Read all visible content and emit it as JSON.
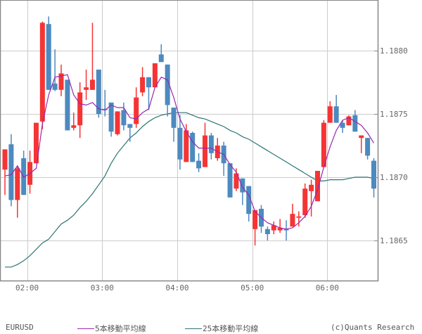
{
  "chart_data": {
    "type": "candlestick",
    "symbol": "EURUSD",
    "title": "",
    "xlabel": "",
    "ylabel": "",
    "interval_minutes": 5,
    "ylim": [
      1.18626,
      1.1884
    ],
    "yticks": [
      1.1865,
      1.187,
      1.1875,
      1.188
    ],
    "ytick_labels": [
      "1.1865",
      "1.1870",
      "1.1875",
      "1.1880"
    ],
    "xtick_labels": [
      "02:00",
      "03:00",
      "04:00",
      "05:00",
      "06:00"
    ],
    "xtick_index": [
      4,
      16,
      28,
      40,
      52
    ],
    "grid": true,
    "legend_position": "bottom",
    "colors": {
      "up": "#f53434",
      "down": "#4c8abf",
      "ma5": "#9b27b0",
      "ma25": "#2e7474",
      "grid": "#cccccc",
      "frame": "#888888"
    },
    "candles": [
      {
        "o": 1.18706,
        "h": 1.18722,
        "l": 1.18686,
        "c": 1.18722
      },
      {
        "o": 1.18726,
        "h": 1.18734,
        "l": 1.18677,
        "c": 1.18682
      },
      {
        "o": 1.18682,
        "h": 1.18709,
        "l": 1.18668,
        "c": 1.18707
      },
      {
        "o": 1.18715,
        "h": 1.18721,
        "l": 1.18686,
        "c": 1.18686
      },
      {
        "o": 1.18694,
        "h": 1.18721,
        "l": 1.18687,
        "c": 1.18712
      },
      {
        "o": 1.18711,
        "h": 1.18743,
        "l": 1.18711,
        "c": 1.18743
      },
      {
        "o": 1.18744,
        "h": 1.18823,
        "l": 1.18738,
        "c": 1.18822
      },
      {
        "o": 1.18821,
        "h": 1.18827,
        "l": 1.18769,
        "c": 1.18769
      },
      {
        "o": 1.18774,
        "h": 1.18801,
        "l": 1.18768,
        "c": 1.18769
      },
      {
        "o": 1.18769,
        "h": 1.18789,
        "l": 1.18764,
        "c": 1.18782
      },
      {
        "o": 1.18777,
        "h": 1.18777,
        "l": 1.18737,
        "c": 1.18737
      },
      {
        "o": 1.18739,
        "h": 1.18751,
        "l": 1.18737,
        "c": 1.18741
      },
      {
        "o": 1.18741,
        "h": 1.18775,
        "l": 1.18731,
        "c": 1.18767
      },
      {
        "o": 1.18769,
        "h": 1.18785,
        "l": 1.18761,
        "c": 1.18771
      },
      {
        "o": 1.18769,
        "h": 1.18822,
        "l": 1.18769,
        "c": 1.18777
      },
      {
        "o": 1.18785,
        "h": 1.18785,
        "l": 1.18747,
        "c": 1.1875
      },
      {
        "o": 1.18754,
        "h": 1.18769,
        "l": 1.18748,
        "c": 1.18753
      },
      {
        "o": 1.18759,
        "h": 1.18759,
        "l": 1.18732,
        "c": 1.18736
      },
      {
        "o": 1.18734,
        "h": 1.18752,
        "l": 1.18733,
        "c": 1.18752
      },
      {
        "o": 1.18753,
        "h": 1.18759,
        "l": 1.18737,
        "c": 1.18741
      },
      {
        "o": 1.18742,
        "h": 1.18742,
        "l": 1.18728,
        "c": 1.18739
      },
      {
        "o": 1.18742,
        "h": 1.18771,
        "l": 1.18739,
        "c": 1.18763
      },
      {
        "o": 1.18767,
        "h": 1.18787,
        "l": 1.18764,
        "c": 1.18779
      },
      {
        "o": 1.18779,
        "h": 1.18779,
        "l": 1.18753,
        "c": 1.18771
      },
      {
        "o": 1.18771,
        "h": 1.1879,
        "l": 1.18771,
        "c": 1.1879
      },
      {
        "o": 1.18797,
        "h": 1.18805,
        "l": 1.18791,
        "c": 1.18791
      },
      {
        "o": 1.18789,
        "h": 1.18789,
        "l": 1.18748,
        "c": 1.18757
      },
      {
        "o": 1.18755,
        "h": 1.18755,
        "l": 1.18728,
        "c": 1.18739
      },
      {
        "o": 1.18739,
        "h": 1.18749,
        "l": 1.18706,
        "c": 1.18714
      },
      {
        "o": 1.18712,
        "h": 1.18742,
        "l": 1.18712,
        "c": 1.18737
      },
      {
        "o": 1.18735,
        "h": 1.18736,
        "l": 1.18712,
        "c": 1.18712
      },
      {
        "o": 1.18713,
        "h": 1.18719,
        "l": 1.18704,
        "c": 1.18707
      },
      {
        "o": 1.18708,
        "h": 1.18743,
        "l": 1.18708,
        "c": 1.18733
      },
      {
        "o": 1.18733,
        "h": 1.18735,
        "l": 1.18714,
        "c": 1.18719
      },
      {
        "o": 1.18715,
        "h": 1.18731,
        "l": 1.18713,
        "c": 1.18725
      },
      {
        "o": 1.18725,
        "h": 1.18728,
        "l": 1.18701,
        "c": 1.18711
      },
      {
        "o": 1.18711,
        "h": 1.18711,
        "l": 1.18684,
        "c": 1.18684
      },
      {
        "o": 1.18691,
        "h": 1.18707,
        "l": 1.18689,
        "c": 1.18703
      },
      {
        "o": 1.18699,
        "h": 1.18699,
        "l": 1.18678,
        "c": 1.18688
      },
      {
        "o": 1.18693,
        "h": 1.18693,
        "l": 1.18665,
        "c": 1.18671
      },
      {
        "o": 1.18659,
        "h": 1.18674,
        "l": 1.18646,
        "c": 1.18674
      },
      {
        "o": 1.18675,
        "h": 1.18678,
        "l": 1.18656,
        "c": 1.18661
      },
      {
        "o": 1.18659,
        "h": 1.18661,
        "l": 1.1865,
        "c": 1.18655
      },
      {
        "o": 1.18658,
        "h": 1.18665,
        "l": 1.18655,
        "c": 1.18662
      },
      {
        "o": 1.18658,
        "h": 1.18667,
        "l": 1.18656,
        "c": 1.1866
      },
      {
        "o": 1.18659,
        "h": 1.18666,
        "l": 1.1865,
        "c": 1.18658
      },
      {
        "o": 1.18661,
        "h": 1.18679,
        "l": 1.18661,
        "c": 1.18671
      },
      {
        "o": 1.18668,
        "h": 1.18673,
        "l": 1.18661,
        "c": 1.18669
      },
      {
        "o": 1.1867,
        "h": 1.18695,
        "l": 1.18668,
        "c": 1.18691
      },
      {
        "o": 1.18689,
        "h": 1.18698,
        "l": 1.18669,
        "c": 1.18694
      },
      {
        "o": 1.18681,
        "h": 1.18705,
        "l": 1.18681,
        "c": 1.18705
      },
      {
        "o": 1.18708,
        "h": 1.18745,
        "l": 1.18708,
        "c": 1.18743
      },
      {
        "o": 1.18743,
        "h": 1.1876,
        "l": 1.18743,
        "c": 1.18756
      },
      {
        "o": 1.18756,
        "h": 1.18765,
        "l": 1.18743,
        "c": 1.18743
      },
      {
        "o": 1.18743,
        "h": 1.18745,
        "l": 1.18735,
        "c": 1.18739
      },
      {
        "o": 1.18741,
        "h": 1.18749,
        "l": 1.18741,
        "c": 1.18748
      },
      {
        "o": 1.18749,
        "h": 1.18753,
        "l": 1.18736,
        "c": 1.18736
      },
      {
        "o": 1.18731,
        "h": 1.18733,
        "l": 1.18719,
        "c": 1.18733
      },
      {
        "o": 1.18731,
        "h": 1.18731,
        "l": 1.18714,
        "c": 1.18717
      },
      {
        "o": 1.18713,
        "h": 1.18715,
        "l": 1.18684,
        "c": 1.18691
      }
    ],
    "series": [
      {
        "name": "5本移動平均線",
        "color": "#9b27b0",
        "values": [
          1.18701,
          1.18702,
          1.18709,
          1.187,
          1.18703,
          1.18707,
          1.18742,
          1.18765,
          1.18779,
          1.1878,
          1.18781,
          1.18765,
          1.18758,
          1.18757,
          1.18759,
          1.18754,
          1.18753,
          1.18757,
          1.18755,
          1.18755,
          1.18747,
          1.18746,
          1.18751,
          1.18754,
          1.18771,
          1.18779,
          1.18777,
          1.18763,
          1.18746,
          1.18736,
          1.18728,
          1.18723,
          1.18723,
          1.18723,
          1.1872,
          1.18718,
          1.1871,
          1.18704,
          1.18692,
          1.18686,
          1.18673,
          1.18668,
          1.18664,
          1.18662,
          1.1866,
          1.18659,
          1.1866,
          1.18664,
          1.18669,
          1.18677,
          1.1869,
          1.18708,
          1.18724,
          1.18737,
          1.18745,
          1.18747,
          1.18744,
          1.18741,
          1.18735,
          1.18727
        ]
      },
      {
        "name": "25本移動平均線",
        "color": "#2e7474",
        "values": [
          1.18629,
          1.18629,
          1.18631,
          1.18634,
          1.18638,
          1.18643,
          1.18648,
          1.18651,
          1.18657,
          1.18663,
          1.18666,
          1.1867,
          1.18676,
          1.18681,
          1.18687,
          1.18694,
          1.18701,
          1.18711,
          1.18719,
          1.18725,
          1.18731,
          1.18735,
          1.1874,
          1.18744,
          1.18747,
          1.18749,
          1.1875,
          1.18751,
          1.18751,
          1.18751,
          1.18749,
          1.18747,
          1.18746,
          1.18744,
          1.18742,
          1.1874,
          1.18737,
          1.18735,
          1.18732,
          1.1873,
          1.18727,
          1.18724,
          1.18721,
          1.18718,
          1.18715,
          1.18712,
          1.18709,
          1.18706,
          1.18703,
          1.187,
          1.18697,
          1.18697,
          1.18698,
          1.18698,
          1.18698,
          1.18699,
          1.187,
          1.187,
          1.187,
          1.18699
        ]
      }
    ]
  },
  "axis": {
    "y_labels": [
      "1.1880",
      "1.1875",
      "1.1870",
      "1.1865"
    ],
    "x_labels": [
      "02:00",
      "03:00",
      "04:00",
      "05:00",
      "06:00"
    ]
  },
  "legend": {
    "symbol": "EURUSD",
    "ma5_label": "5本移動平均線",
    "ma25_label": "25本移動平均線",
    "credit": "(c)Quants Research"
  }
}
